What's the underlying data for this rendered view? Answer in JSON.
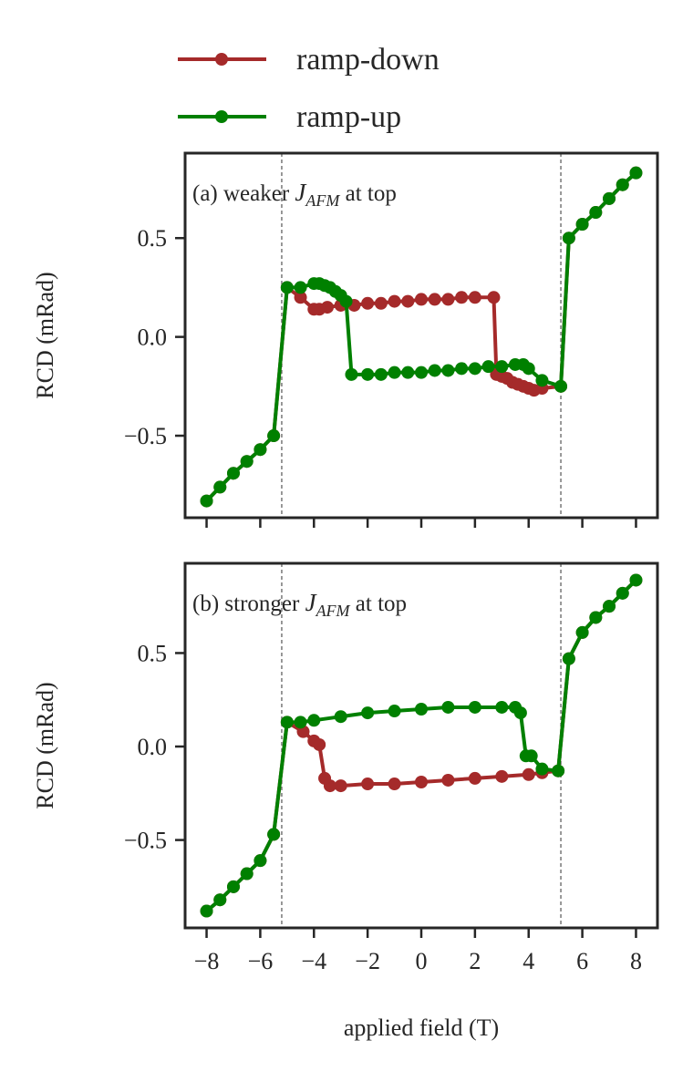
{
  "chart_data": [
    {
      "type": "line",
      "annotation": {
        "before": "(a) weaker ",
        "symbol": "J",
        "subscript": "AFM",
        "after": " at top"
      },
      "ylabel": "RCD (mRad)",
      "xlim": [
        -8.8,
        8.8
      ],
      "xticks": [
        -8,
        -6,
        -4,
        -2,
        0,
        2,
        4,
        6,
        8
      ],
      "ylim": [
        -0.915,
        0.93
      ],
      "yticks": [
        {
          "value": -0.5,
          "label": "−0.5"
        },
        {
          "value": 0,
          "label": "0.0"
        },
        0.5
      ],
      "vlines": [
        -5.2,
        5.2
      ],
      "series": [
        {
          "name": "ramp-down",
          "color": "#a52a2a",
          "x": [
            8,
            7.5,
            7,
            6.5,
            6,
            5.5,
            5.2,
            4.5,
            4.2,
            4,
            3.8,
            3.6,
            3.4,
            3.2,
            3,
            2.8,
            2.7,
            2,
            1.5,
            1,
            0.5,
            0,
            -0.5,
            -1,
            -1.5,
            -2,
            -2.5,
            -3,
            -3.5,
            -3.8,
            -4,
            -4.5,
            -5,
            -5.5,
            -6,
            -6.5,
            -7,
            -7.5,
            -8
          ],
          "values": [
            0.83,
            0.77,
            0.7,
            0.63,
            0.57,
            0.5,
            -0.25,
            -0.26,
            -0.27,
            -0.26,
            -0.25,
            -0.24,
            -0.23,
            -0.21,
            -0.2,
            -0.19,
            0.2,
            0.2,
            0.2,
            0.19,
            0.19,
            0.19,
            0.18,
            0.18,
            0.17,
            0.17,
            0.16,
            0.16,
            0.15,
            0.14,
            0.14,
            0.2,
            0.25,
            -0.5,
            -0.57,
            -0.63,
            -0.69,
            -0.76,
            -0.83
          ]
        },
        {
          "name": "ramp-up",
          "color": "#008000",
          "x": [
            -8,
            -7.5,
            -7,
            -6.5,
            -6,
            -5.5,
            -5,
            -4.5,
            -4,
            -3.8,
            -3.6,
            -3.4,
            -3.2,
            -3,
            -2.8,
            -2.6,
            -2,
            -1.5,
            -1,
            -0.5,
            0,
            0.5,
            1,
            1.5,
            2,
            2.5,
            3,
            3.5,
            3.8,
            4,
            4.5,
            5.2,
            5.5,
            6,
            6.5,
            7,
            7.5,
            8
          ],
          "values": [
            -0.83,
            -0.76,
            -0.69,
            -0.63,
            -0.57,
            -0.5,
            0.25,
            0.25,
            0.27,
            0.27,
            0.26,
            0.25,
            0.23,
            0.21,
            0.18,
            -0.19,
            -0.19,
            -0.19,
            -0.18,
            -0.18,
            -0.18,
            -0.17,
            -0.17,
            -0.16,
            -0.16,
            -0.15,
            -0.15,
            -0.14,
            -0.14,
            -0.16,
            -0.22,
            -0.25,
            0.5,
            0.57,
            0.63,
            0.7,
            0.77,
            0.83
          ]
        }
      ]
    },
    {
      "type": "line",
      "annotation": {
        "before": "(b) stronger ",
        "symbol": "J",
        "subscript": "AFM",
        "after": " at top"
      },
      "ylabel": "RCD (mRad)",
      "xlabel": "applied field (T)",
      "xlim": [
        -8.8,
        8.8
      ],
      "xticks": [
        {
          "value": -8,
          "label": "−8"
        },
        {
          "value": -6,
          "label": "−6"
        },
        {
          "value": -4,
          "label": "−4"
        },
        {
          "value": -2,
          "label": "−2"
        },
        0,
        2,
        4,
        6,
        8
      ],
      "ylim": [
        -0.97,
        0.98
      ],
      "yticks": [
        {
          "value": -0.5,
          "label": "−0.5"
        },
        {
          "value": 0,
          "label": "0.0"
        },
        0.5
      ],
      "vlines": [
        -5.2,
        5.2
      ],
      "series": [
        {
          "name": "ramp-down",
          "color": "#a52a2a",
          "x": [
            8,
            7.5,
            7,
            6.5,
            6,
            5.5,
            5.1,
            4.5,
            4,
            3,
            2,
            1,
            0,
            -1,
            -2,
            -3,
            -3.4,
            -3.6,
            -3.8,
            -4,
            -4.4,
            -5,
            -5.5,
            -6,
            -6.5,
            -7,
            -7.5,
            -8
          ],
          "values": [
            0.89,
            0.82,
            0.75,
            0.69,
            0.61,
            0.47,
            -0.13,
            -0.14,
            -0.15,
            -0.16,
            -0.17,
            -0.18,
            -0.19,
            -0.2,
            -0.2,
            -0.21,
            -0.21,
            -0.17,
            0.01,
            0.03,
            0.08,
            0.13,
            -0.47,
            -0.61,
            -0.68,
            -0.75,
            -0.82,
            -0.88
          ]
        },
        {
          "name": "ramp-up",
          "color": "#008000",
          "x": [
            -8,
            -7.5,
            -7,
            -6.5,
            -6,
            -5.5,
            -5,
            -4.5,
            -4,
            -3,
            -2,
            -1,
            0,
            1,
            2,
            3,
            3.5,
            3.7,
            3.9,
            4.1,
            4.5,
            5.1,
            5.5,
            6,
            6.5,
            7,
            7.5,
            8
          ],
          "values": [
            -0.88,
            -0.82,
            -0.75,
            -0.68,
            -0.61,
            -0.47,
            0.13,
            0.13,
            0.14,
            0.16,
            0.18,
            0.19,
            0.2,
            0.21,
            0.21,
            0.21,
            0.21,
            0.18,
            -0.05,
            -0.05,
            -0.12,
            -0.13,
            0.47,
            0.61,
            0.69,
            0.75,
            0.82,
            0.89
          ]
        }
      ]
    }
  ]
}
